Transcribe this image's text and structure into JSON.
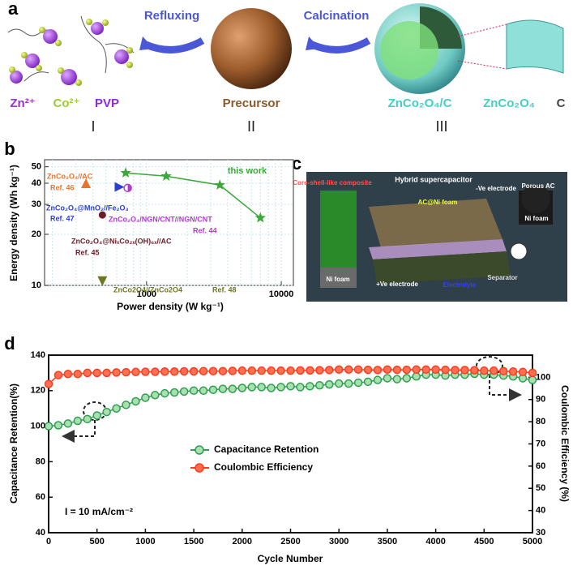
{
  "panel_a": {
    "label": "a",
    "species": [
      "Zn²⁺",
      "Co²⁺",
      "PVP"
    ],
    "step1": "Refluxing",
    "step2": "Calcination",
    "precursor": "Precursor",
    "composite": "ZnCo₂O₄/C",
    "parts": [
      "ZnCo₂O₄",
      "C"
    ],
    "stages": [
      "I",
      "II",
      "III"
    ]
  },
  "panel_c": {
    "label": "c",
    "title": "Hybrid supercapacitor",
    "labels": [
      "-Ve electrode",
      "Core-shell-like composite",
      "AC@Ni foam",
      "Porous AC",
      "Ni foam",
      "Ni foam",
      "+Ve electrode",
      "Electrolyte",
      "Separator"
    ]
  },
  "chart_data": [
    {
      "type": "scatter",
      "panel": "b",
      "xlabel": "Power density (W kg⁻¹)",
      "ylabel": "Energy density (Wh kg⁻¹)",
      "log_x": true,
      "log_y": true,
      "grid": true,
      "xlim": [
        175,
        12300
      ],
      "ylim": [
        10,
        55
      ],
      "xticks": [
        1000,
        10000
      ],
      "yticks": [
        10,
        20,
        30,
        40,
        50
      ],
      "series": [
        {
          "name": "this work",
          "color": "#3aa83a",
          "marker": "star",
          "line": true,
          "x": [
            700,
            1400,
            3500,
            7000
          ],
          "values": [
            46,
            44,
            39,
            25
          ]
        },
        {
          "name": "ZnCo₂O₄//AC",
          "ref": "Ref. 46",
          "color": "#e8742a",
          "marker": "triangle-up",
          "x": [
            355
          ],
          "values": [
            40
          ]
        },
        {
          "name": "ZnCo₂O₄@MnO₂//Fe₂O₃",
          "ref": "Ref. 47",
          "color": "#2a3fd0",
          "marker": "triangle-right",
          "x": [
            630
          ],
          "values": [
            38
          ]
        },
        {
          "name": "ZnCo₂O₄/NGN/CNT//NGN/CNT",
          "ref": "Ref. 44",
          "color": "#b03ad0",
          "marker": "half-circle",
          "x": [
            725
          ],
          "values": [
            37.5
          ]
        },
        {
          "name": "ZnCo₂O₄@NiₓCo₂ₓ(OH)₆ₓ//AC",
          "ref": "Ref. 45",
          "color": "#6b1e2a",
          "marker": "circle",
          "x": [
            470
          ],
          "values": [
            26
          ]
        },
        {
          "name": "ZnCo2O4//ZnCo2O4",
          "ref": "Ref. 48",
          "color": "#6b7a1e",
          "marker": "triangle-down",
          "x": [
            470
          ],
          "values": [
            10.6
          ]
        }
      ]
    },
    {
      "type": "line",
      "panel": "d",
      "xlabel": "Cycle Number",
      "ylabel": "Capacitance Retention(%)",
      "y2label": "Coulombic Efficiency (%)",
      "annotation": "I = 10 mA/cm⁻²",
      "legend": "center",
      "xlim": [
        0,
        5000
      ],
      "xticks": [
        0,
        500,
        1000,
        1500,
        2000,
        2500,
        3000,
        3500,
        4000,
        4500,
        5000
      ],
      "ylim": [
        40,
        140
      ],
      "yticks": [
        40,
        60,
        80,
        100,
        120,
        140
      ],
      "y2lim": [
        30,
        110
      ],
      "y2ticks": [
        30,
        40,
        50,
        60,
        70,
        80,
        90,
        100
      ],
      "x": [
        0,
        100,
        200,
        300,
        400,
        500,
        600,
        700,
        800,
        900,
        1000,
        1100,
        1200,
        1300,
        1400,
        1500,
        1600,
        1700,
        1800,
        1900,
        2000,
        2100,
        2200,
        2300,
        2400,
        2500,
        2600,
        2700,
        2800,
        2900,
        3000,
        3100,
        3200,
        3300,
        3400,
        3500,
        3600,
        3700,
        3800,
        3900,
        4000,
        4100,
        4200,
        4300,
        4400,
        4500,
        4600,
        4700,
        4800,
        4900,
        5000
      ],
      "series": [
        {
          "name": "Capacitance Retention",
          "color": "#2e9e4f",
          "values": [
            100,
            100.5,
            101.5,
            103,
            104,
            106,
            108,
            110,
            112,
            114,
            116,
            117.5,
            118.5,
            119,
            119.5,
            120,
            120,
            120.5,
            121,
            121,
            121.5,
            122,
            122,
            121.5,
            122,
            122.5,
            122,
            122.5,
            123,
            123.5,
            124,
            124,
            124.5,
            125,
            126,
            127,
            126.5,
            127,
            128,
            129,
            129,
            128.5,
            129,
            129,
            129.5,
            129,
            129,
            128.5,
            128,
            127,
            126
          ]
        },
        {
          "name": "Coulombic Efficiency",
          "color": "#ff3b1f",
          "axis": "y2",
          "values": [
            97,
            101,
            101.5,
            101.5,
            102,
            102,
            102,
            102.2,
            102.3,
            102.4,
            102.5,
            102.5,
            102.6,
            102.6,
            102.7,
            102.7,
            102.8,
            102.8,
            102.8,
            102.9,
            103,
            103,
            103,
            103,
            103,
            103,
            103.1,
            103.1,
            103.2,
            103.3,
            103.5,
            103.5,
            103.5,
            103.4,
            103.3,
            103.5,
            103.4,
            103.4,
            103.5,
            103.5,
            103.5,
            103.4,
            103.3,
            103.3,
            103.2,
            103,
            103,
            102.8,
            102.6,
            102.4,
            102
          ]
        }
      ]
    }
  ]
}
